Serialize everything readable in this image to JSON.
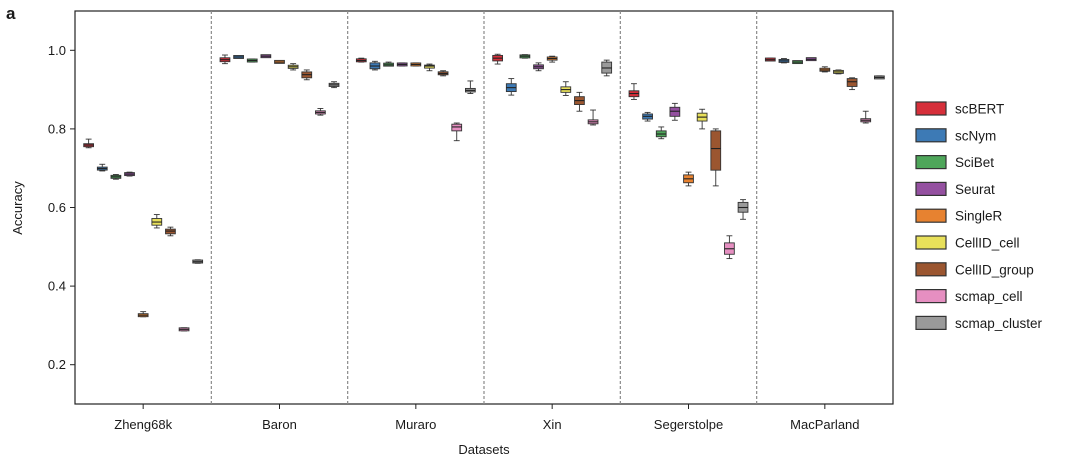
{
  "panel_label": "a",
  "chart_data": {
    "type": "boxplot",
    "xlabel": "Datasets",
    "ylabel": "Accuracy",
    "ylim": [
      0.1,
      1.1
    ],
    "yticks": [
      0.2,
      0.4,
      0.6,
      0.8,
      1.0
    ],
    "ytick_labels": [
      "0.2",
      "0.4",
      "0.6",
      "0.8",
      "1.0"
    ],
    "datasets": [
      "Zheng68k",
      "Baron",
      "Muraro",
      "Xin",
      "Segerstolpe",
      "MacParland"
    ],
    "legend_position": "right",
    "series": [
      {
        "name": "scBERT",
        "color": "#d62f3a",
        "boxes": [
          {
            "min": 0.752,
            "q1": 0.755,
            "median": 0.759,
            "q3": 0.762,
            "max": 0.774
          },
          {
            "min": 0.966,
            "q1": 0.971,
            "median": 0.976,
            "q3": 0.981,
            "max": 0.988
          },
          {
            "min": 0.97,
            "q1": 0.972,
            "median": 0.974,
            "q3": 0.977,
            "max": 0.98
          },
          {
            "min": 0.965,
            "q1": 0.973,
            "median": 0.98,
            "q3": 0.987,
            "max": 0.99
          },
          {
            "min": 0.875,
            "q1": 0.882,
            "median": 0.89,
            "q3": 0.897,
            "max": 0.915
          },
          {
            "min": 0.974,
            "q1": 0.975,
            "median": 0.976,
            "q3": 0.978,
            "max": 0.98
          }
        ]
      },
      {
        "name": "scNym",
        "color": "#3d7ab5",
        "boxes": [
          {
            "min": 0.693,
            "q1": 0.696,
            "median": 0.699,
            "q3": 0.702,
            "max": 0.71
          },
          {
            "min": 0.981,
            "q1": 0.982,
            "median": 0.983,
            "q3": 0.984,
            "max": 0.985
          },
          {
            "min": 0.95,
            "q1": 0.953,
            "median": 0.96,
            "q3": 0.968,
            "max": 0.972
          },
          {
            "min": 0.886,
            "q1": 0.895,
            "median": 0.905,
            "q3": 0.915,
            "max": 0.928
          },
          {
            "min": 0.82,
            "q1": 0.825,
            "median": 0.832,
            "q3": 0.838,
            "max": 0.842
          },
          {
            "min": 0.968,
            "q1": 0.97,
            "median": 0.973,
            "q3": 0.976,
            "max": 0.979
          }
        ]
      },
      {
        "name": "SciBet",
        "color": "#4ea65a",
        "boxes": [
          {
            "min": 0.672,
            "q1": 0.675,
            "median": 0.678,
            "q3": 0.681,
            "max": 0.684
          },
          {
            "min": 0.97,
            "q1": 0.972,
            "median": 0.974,
            "q3": 0.976,
            "max": 0.978
          },
          {
            "min": 0.96,
            "q1": 0.962,
            "median": 0.963,
            "q3": 0.965,
            "max": 0.97
          },
          {
            "min": 0.98,
            "q1": 0.982,
            "median": 0.985,
            "q3": 0.987,
            "max": 0.989
          },
          {
            "min": 0.775,
            "q1": 0.78,
            "median": 0.787,
            "q3": 0.795,
            "max": 0.805
          },
          {
            "min": 0.968,
            "q1": 0.969,
            "median": 0.97,
            "q3": 0.971,
            "max": 0.973
          }
        ]
      },
      {
        "name": "Seurat",
        "color": "#9450a0",
        "boxes": [
          {
            "min": 0.68,
            "q1": 0.682,
            "median": 0.685,
            "q3": 0.688,
            "max": 0.69
          },
          {
            "min": 0.982,
            "q1": 0.983,
            "median": 0.985,
            "q3": 0.987,
            "max": 0.988
          },
          {
            "min": 0.96,
            "q1": 0.962,
            "median": 0.964,
            "q3": 0.966,
            "max": 0.968
          },
          {
            "min": 0.948,
            "q1": 0.953,
            "median": 0.958,
            "q3": 0.963,
            "max": 0.968
          },
          {
            "min": 0.822,
            "q1": 0.832,
            "median": 0.845,
            "q3": 0.855,
            "max": 0.865
          },
          {
            "min": 0.975,
            "q1": 0.976,
            "median": 0.977,
            "q3": 0.979,
            "max": 0.98
          }
        ]
      },
      {
        "name": "SingleR",
        "color": "#e78230",
        "boxes": [
          {
            "min": 0.322,
            "q1": 0.324,
            "median": 0.326,
            "q3": 0.328,
            "max": 0.335
          },
          {
            "min": 0.968,
            "q1": 0.969,
            "median": 0.97,
            "q3": 0.972,
            "max": 0.974
          },
          {
            "min": 0.96,
            "q1": 0.962,
            "median": 0.964,
            "q3": 0.966,
            "max": 0.968
          },
          {
            "min": 0.97,
            "q1": 0.975,
            "median": 0.979,
            "q3": 0.983,
            "max": 0.985
          },
          {
            "min": 0.655,
            "q1": 0.663,
            "median": 0.673,
            "q3": 0.683,
            "max": 0.69
          },
          {
            "min": 0.945,
            "q1": 0.948,
            "median": 0.95,
            "q3": 0.953,
            "max": 0.958
          }
        ]
      },
      {
        "name": "CellID_cell",
        "color": "#e8e05a",
        "boxes": [
          {
            "min": 0.548,
            "q1": 0.555,
            "median": 0.563,
            "q3": 0.572,
            "max": 0.582
          },
          {
            "min": 0.95,
            "q1": 0.954,
            "median": 0.958,
            "q3": 0.962,
            "max": 0.966
          },
          {
            "min": 0.948,
            "q1": 0.955,
            "median": 0.96,
            "q3": 0.962,
            "max": 0.965
          },
          {
            "min": 0.885,
            "q1": 0.893,
            "median": 0.9,
            "q3": 0.907,
            "max": 0.92
          },
          {
            "min": 0.8,
            "q1": 0.82,
            "median": 0.83,
            "q3": 0.84,
            "max": 0.85
          },
          {
            "min": 0.94,
            "q1": 0.942,
            "median": 0.945,
            "q3": 0.948,
            "max": 0.95
          }
        ]
      },
      {
        "name": "CellID_group",
        "color": "#9b5630",
        "boxes": [
          {
            "min": 0.528,
            "q1": 0.533,
            "median": 0.54,
            "q3": 0.545,
            "max": 0.55
          },
          {
            "min": 0.925,
            "q1": 0.93,
            "median": 0.938,
            "q3": 0.945,
            "max": 0.95
          },
          {
            "min": 0.935,
            "q1": 0.938,
            "median": 0.941,
            "q3": 0.945,
            "max": 0.948
          },
          {
            "min": 0.845,
            "q1": 0.862,
            "median": 0.872,
            "q3": 0.882,
            "max": 0.893
          },
          {
            "min": 0.655,
            "q1": 0.695,
            "median": 0.75,
            "q3": 0.795,
            "max": 0.8
          },
          {
            "min": 0.9,
            "q1": 0.908,
            "median": 0.92,
            "q3": 0.928,
            "max": 0.93
          }
        ]
      },
      {
        "name": "scmap_cell",
        "color": "#e68fc1",
        "boxes": [
          {
            "min": 0.286,
            "q1": 0.288,
            "median": 0.29,
            "q3": 0.292,
            "max": 0.294
          },
          {
            "min": 0.835,
            "q1": 0.838,
            "median": 0.842,
            "q3": 0.846,
            "max": 0.852
          },
          {
            "min": 0.77,
            "q1": 0.795,
            "median": 0.805,
            "q3": 0.812,
            "max": 0.815
          },
          {
            "min": 0.81,
            "q1": 0.813,
            "median": 0.818,
            "q3": 0.823,
            "max": 0.848
          },
          {
            "min": 0.47,
            "q1": 0.481,
            "median": 0.495,
            "q3": 0.51,
            "max": 0.528
          },
          {
            "min": 0.815,
            "q1": 0.818,
            "median": 0.822,
            "q3": 0.826,
            "max": 0.845
          }
        ]
      },
      {
        "name": "scmap_cluster",
        "color": "#9a9a9a",
        "boxes": [
          {
            "min": 0.458,
            "q1": 0.46,
            "median": 0.462,
            "q3": 0.465,
            "max": 0.467
          },
          {
            "min": 0.905,
            "q1": 0.908,
            "median": 0.912,
            "q3": 0.916,
            "max": 0.92
          },
          {
            "min": 0.89,
            "q1": 0.894,
            "median": 0.898,
            "q3": 0.903,
            "max": 0.922
          },
          {
            "min": 0.935,
            "q1": 0.942,
            "median": 0.955,
            "q3": 0.97,
            "max": 0.975
          },
          {
            "min": 0.57,
            "q1": 0.588,
            "median": 0.6,
            "q3": 0.613,
            "max": 0.62
          },
          {
            "min": 0.928,
            "q1": 0.929,
            "median": 0.931,
            "q3": 0.933,
            "max": 0.935
          }
        ]
      }
    ]
  }
}
